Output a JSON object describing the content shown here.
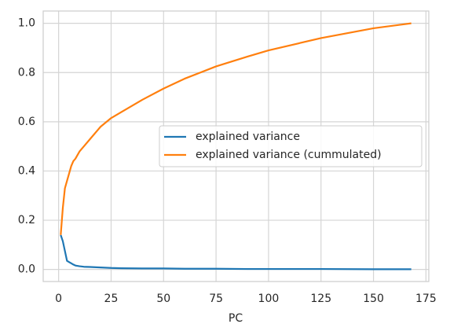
{
  "chart_data": {
    "type": "line",
    "x_label": "PC",
    "x": [
      1,
      2,
      3,
      4,
      5,
      6,
      7,
      8,
      10,
      12,
      15,
      20,
      25,
      30,
      40,
      50,
      60,
      75,
      90,
      100,
      125,
      150,
      168
    ],
    "series": [
      {
        "name": "explained variance",
        "color": "#1f77b4",
        "values": [
          0.14,
          0.115,
          0.075,
          0.035,
          0.03,
          0.025,
          0.02,
          0.016,
          0.013,
          0.011,
          0.01,
          0.008,
          0.006,
          0.005,
          0.004,
          0.004,
          0.003,
          0.003,
          0.002,
          0.002,
          0.002,
          0.001,
          0.001
        ]
      },
      {
        "name": "explained variance (cummulated)",
        "color": "#ff7f0e",
        "values": [
          0.14,
          0.25,
          0.33,
          0.36,
          0.39,
          0.42,
          0.44,
          0.45,
          0.48,
          0.5,
          0.53,
          0.58,
          0.615,
          0.64,
          0.69,
          0.735,
          0.775,
          0.825,
          0.865,
          0.89,
          0.94,
          0.98,
          1.0
        ]
      }
    ],
    "xlim": [
      -7.35,
      176.35
    ],
    "ylim": [
      -0.049,
      1.05
    ],
    "xticks": [
      0,
      25,
      50,
      75,
      100,
      125,
      150,
      175
    ],
    "yticks": [
      {
        "value": 0,
        "label": "0.0"
      },
      0.2,
      0.4,
      0.6,
      0.8,
      {
        "value": 1,
        "label": "1.0"
      }
    ],
    "grid": true,
    "legend": "center right"
  }
}
